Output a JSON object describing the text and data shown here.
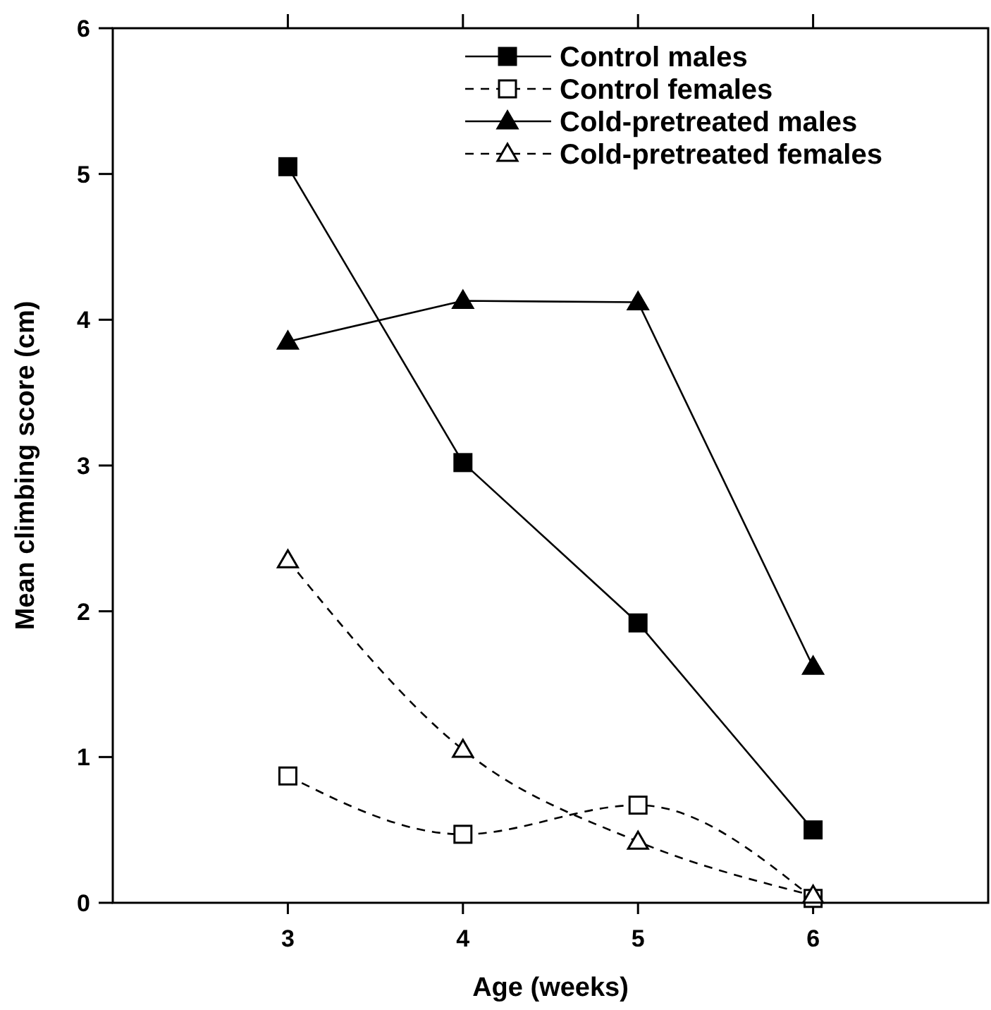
{
  "chart_data": {
    "type": "line",
    "xlabel": "Age (weeks)",
    "ylabel": "Mean climbing score (cm)",
    "x": [
      3,
      4,
      5,
      6
    ],
    "xlim": [
      2,
      7
    ],
    "xticks": [
      3,
      4,
      5,
      6
    ],
    "ylim": [
      0,
      6
    ],
    "yticks": [
      0,
      1,
      2,
      3,
      4,
      5,
      6
    ],
    "grid": false,
    "legend": "top right",
    "series": [
      {
        "name": "Control males",
        "color": "#000000",
        "values": [
          5.05,
          3.02,
          1.92,
          0.5
        ],
        "marker": "square",
        "line_style": "solid"
      },
      {
        "name": "Control females",
        "color": "#000000",
        "values": [
          0.87,
          0.47,
          0.67,
          0.03
        ],
        "marker": "square",
        "line_style": "dashed"
      },
      {
        "name": "Cold-pretreated males",
        "color": "#000000",
        "values": [
          3.85,
          4.13,
          4.12,
          1.62
        ],
        "marker": "triangle",
        "line_style": "solid"
      },
      {
        "name": "Cold-pretreated females",
        "color": "#000000",
        "values": [
          2.35,
          1.05,
          0.42,
          0.05
        ],
        "marker": "triangle",
        "line_style": "dashed"
      }
    ]
  }
}
